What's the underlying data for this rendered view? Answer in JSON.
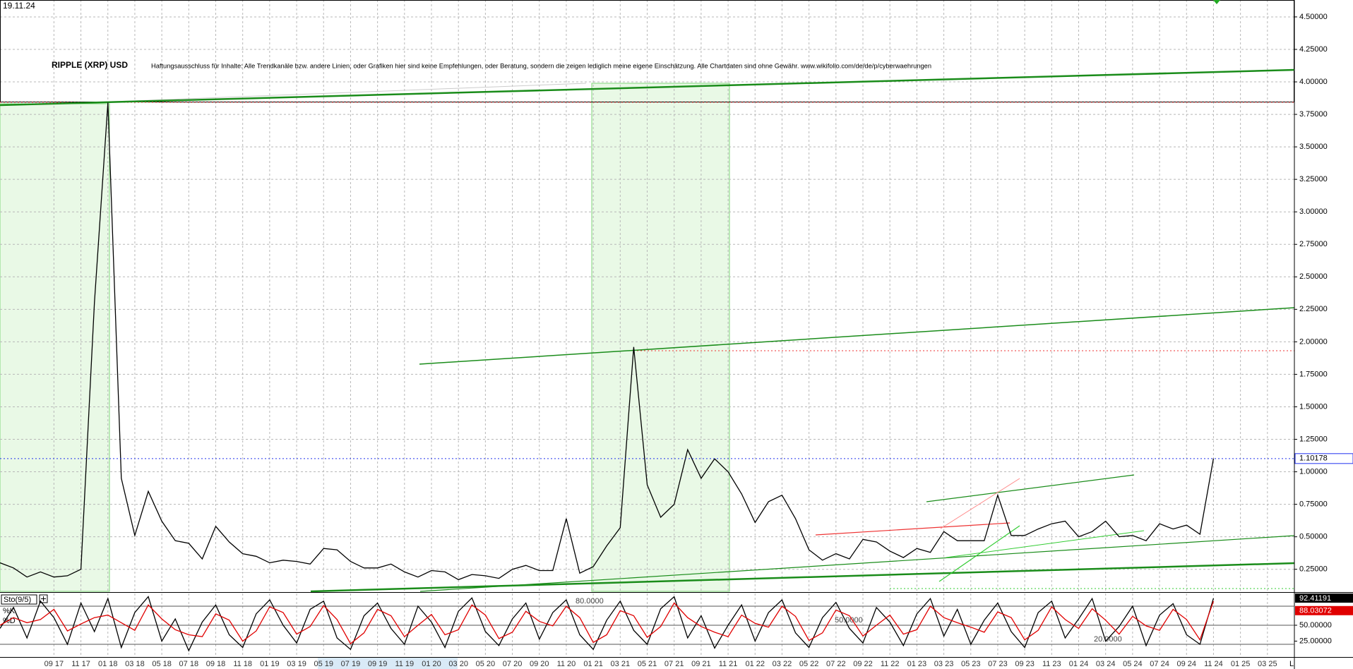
{
  "chart_data": [
    {
      "type": "line",
      "title": "RIPPLE (XRP) USD",
      "subtitle": "Haftungsausschluss für Inhalte: Alle Trendkanäle bzw. andere Linien, oder Grafiken hier sind keine Empfehlungen, oder Beratung, sondern die zeigen lediglich meine eigene Einschätzung. Alle Chartdaten sind ohne Gewähr.  www.wikifolio.com/de/de/p/cyberwaehrungen",
      "date": "19.11.24",
      "corner_label": "L",
      "x": [
        "2017-05",
        "2017-06",
        "2017-07",
        "2017-08",
        "2017-09",
        "2017-10",
        "2017-11",
        "2017-12",
        "2018-01",
        "2018-02",
        "2018-03",
        "2018-04",
        "2018-05",
        "2018-06",
        "2018-07",
        "2018-08",
        "2018-09",
        "2018-10",
        "2018-11",
        "2018-12",
        "2019-01",
        "2019-02",
        "2019-03",
        "2019-04",
        "2019-05",
        "2019-06",
        "2019-07",
        "2019-08",
        "2019-09",
        "2019-10",
        "2019-11",
        "2019-12",
        "2020-01",
        "2020-02",
        "2020-03",
        "2020-04",
        "2020-05",
        "2020-06",
        "2020-07",
        "2020-08",
        "2020-09",
        "2020-10",
        "2020-11",
        "2020-12",
        "2021-01",
        "2021-02",
        "2021-03",
        "2021-04",
        "2021-05",
        "2021-06",
        "2021-07",
        "2021-08",
        "2021-09",
        "2021-10",
        "2021-11",
        "2021-12",
        "2022-01",
        "2022-02",
        "2022-03",
        "2022-04",
        "2022-05",
        "2022-06",
        "2022-07",
        "2022-08",
        "2022-09",
        "2022-10",
        "2022-11",
        "2022-12",
        "2023-01",
        "2023-02",
        "2023-03",
        "2023-04",
        "2023-05",
        "2023-06",
        "2023-07",
        "2023-08",
        "2023-09",
        "2023-10",
        "2023-11",
        "2023-12",
        "2024-01",
        "2024-02",
        "2024-03",
        "2024-04",
        "2024-05",
        "2024-06",
        "2024-07",
        "2024-08",
        "2024-09",
        "2024-10",
        "2024-11"
      ],
      "series": [
        {
          "color": "#000000",
          "values": [
            0.3,
            0.26,
            0.19,
            0.23,
            0.19,
            0.2,
            0.25,
            2.3,
            3.84,
            0.95,
            0.51,
            0.85,
            0.62,
            0.47,
            0.45,
            0.33,
            0.58,
            0.46,
            0.37,
            0.35,
            0.3,
            0.32,
            0.31,
            0.29,
            0.41,
            0.4,
            0.31,
            0.26,
            0.26,
            0.29,
            0.23,
            0.19,
            0.24,
            0.23,
            0.17,
            0.21,
            0.2,
            0.18,
            0.25,
            0.28,
            0.24,
            0.24,
            0.64,
            0.22,
            0.27,
            0.43,
            0.57,
            1.96,
            0.9,
            0.65,
            0.75,
            1.17,
            0.95,
            1.1,
            1.0,
            0.83,
            0.61,
            0.77,
            0.82,
            0.64,
            0.4,
            0.32,
            0.37,
            0.33,
            0.48,
            0.46,
            0.39,
            0.34,
            0.41,
            0.38,
            0.54,
            0.47,
            0.47,
            0.47,
            0.82,
            0.51,
            0.51,
            0.56,
            0.6,
            0.62,
            0.5,
            0.54,
            0.62,
            0.5,
            0.51,
            0.47,
            0.6,
            0.56,
            0.59,
            0.52,
            1.10178
          ]
        }
      ],
      "xlim": [
        "2017-05",
        "2025-05"
      ],
      "xticks": [
        {
          "value": "2017-09",
          "label": "09 17"
        },
        {
          "value": "2017-11",
          "label": "11 17"
        },
        {
          "value": "2018-01",
          "label": "01 18"
        },
        {
          "value": "2018-03",
          "label": "03 18"
        },
        {
          "value": "2018-05",
          "label": "05 18"
        },
        {
          "value": "2018-07",
          "label": "07 18"
        },
        {
          "value": "2018-09",
          "label": "09 18"
        },
        {
          "value": "2018-11",
          "label": "11 18"
        },
        {
          "value": "2019-01",
          "label": "01 19"
        },
        {
          "value": "2019-03",
          "label": "03 19"
        },
        {
          "value": "2019-05",
          "label": "05 19"
        },
        {
          "value": "2019-07",
          "label": "07 19"
        },
        {
          "value": "2019-09",
          "label": "09 19"
        },
        {
          "value": "2019-11",
          "label": "11 19"
        },
        {
          "value": "2020-01",
          "label": "01 20"
        },
        {
          "value": "2020-03",
          "label": "03 20"
        },
        {
          "value": "2020-05",
          "label": "05 20"
        },
        {
          "value": "2020-07",
          "label": "07 20"
        },
        {
          "value": "2020-09",
          "label": "09 20"
        },
        {
          "value": "2020-11",
          "label": "11 20"
        },
        {
          "value": "2021-01",
          "label": "01 21"
        },
        {
          "value": "2021-03",
          "label": "03 21"
        },
        {
          "value": "2021-05",
          "label": "05 21"
        },
        {
          "value": "2021-07",
          "label": "07 21"
        },
        {
          "value": "2021-09",
          "label": "09 21"
        },
        {
          "value": "2021-11",
          "label": "11 21"
        },
        {
          "value": "2022-01",
          "label": "01 22"
        },
        {
          "value": "2022-03",
          "label": "03 22"
        },
        {
          "value": "2022-05",
          "label": "05 22"
        },
        {
          "value": "2022-07",
          "label": "07 22"
        },
        {
          "value": "2022-09",
          "label": "09 22"
        },
        {
          "value": "2022-11",
          "label": "11 22"
        },
        {
          "value": "2023-01",
          "label": "01 23"
        },
        {
          "value": "2023-03",
          "label": "03 23"
        },
        {
          "value": "2023-05",
          "label": "05 23"
        },
        {
          "value": "2023-07",
          "label": "07 23"
        },
        {
          "value": "2023-09",
          "label": "09 23"
        },
        {
          "value": "2023-11",
          "label": "11 23"
        },
        {
          "value": "2024-01",
          "label": "01 24"
        },
        {
          "value": "2024-03",
          "label": "03 24"
        },
        {
          "value": "2024-05",
          "label": "05 24"
        },
        {
          "value": "2024-07",
          "label": "07 24"
        },
        {
          "value": "2024-09",
          "label": "09 24"
        },
        {
          "value": "2024-11",
          "label": "11 24"
        },
        {
          "value": "2025-01",
          "label": "01 25"
        },
        {
          "value": "2025-03",
          "label": "03 25"
        }
      ],
      "ylim": [
        0.08,
        4.63
      ],
      "yticks": [
        {
          "value": 0.25,
          "label": "0.25000"
        },
        {
          "value": 0.5,
          "label": "0.50000"
        },
        {
          "value": 0.75,
          "label": "0.75000"
        },
        {
          "value": 1,
          "label": "1.00000"
        },
        {
          "value": 1.25,
          "label": "1.25000"
        },
        {
          "value": 1.5,
          "label": "1.50000"
        },
        {
          "value": 1.75,
          "label": "1.75000"
        },
        {
          "value": 2,
          "label": "2.00000"
        },
        {
          "value": 2.25,
          "label": "2.25000"
        },
        {
          "value": 2.5,
          "label": "2.50000"
        },
        {
          "value": 2.75,
          "label": "2.75000"
        },
        {
          "value": 3,
          "label": "3.00000"
        },
        {
          "value": 3.25,
          "label": "3.25000"
        },
        {
          "value": 3.5,
          "label": "3.50000"
        },
        {
          "value": 3.75,
          "label": "3.75000"
        },
        {
          "value": 4,
          "label": "4.00000"
        },
        {
          "value": 4.25,
          "label": "4.25000"
        },
        {
          "value": 4.5,
          "label": "4.50000"
        }
      ],
      "grid": true
    },
    {
      "type": "line",
      "title": "Sto(9/5)",
      "series": [
        {
          "name": "%K",
          "color": "#000000",
          "values": [
            45,
            78,
            30,
            88,
            62,
            20,
            85,
            40,
            92,
            15,
            70,
            95,
            25,
            60,
            10,
            55,
            82,
            35,
            15,
            68,
            90,
            50,
            22,
            75,
            88,
            30,
            12,
            65,
            85,
            45,
            20,
            80,
            55,
            15,
            72,
            93,
            40,
            18,
            60,
            85,
            28,
            70,
            90,
            35,
            12,
            58,
            88,
            42,
            20,
            76,
            95,
            30,
            65,
            14,
            50,
            82,
            25,
            70,
            90,
            38,
            15,
            62,
            86,
            45,
            22,
            78,
            55,
            18,
            68,
            92,
            33,
            75,
            20,
            58,
            85,
            40,
            15,
            70,
            88,
            30,
            60,
            92,
            25,
            48,
            80,
            18,
            66,
            84,
            35,
            20,
            92.41191
          ]
        },
        {
          "name": "%D",
          "color": "#e00000",
          "values": [
            50,
            62,
            54,
            59,
            75,
            41,
            52,
            62,
            66,
            54,
            42,
            82,
            60,
            43,
            35,
            32,
            68,
            58,
            25,
            41,
            79,
            70,
            36,
            48,
            81,
            59,
            21,
            38,
            75,
            65,
            32,
            50,
            67,
            35,
            43,
            82,
            66,
            29,
            39,
            72,
            56,
            49,
            80,
            62,
            23,
            35,
            73,
            65,
            31,
            48,
            85,
            62,
            48,
            39,
            32,
            66,
            53,
            47,
            80,
            64,
            26,
            38,
            74,
            65,
            33,
            50,
            66,
            36,
            43,
            80,
            62,
            54,
            47,
            39,
            71,
            62,
            27,
            42,
            79,
            59,
            45,
            76,
            58,
            36,
            64,
            49,
            42,
            75,
            59,
            27,
            88.03072
          ]
        }
      ],
      "ylim": [
        0,
        100
      ],
      "yticks": [
        {
          "value": 25,
          "label": "25.00000"
        },
        {
          "value": 50,
          "label": "50.00000"
        }
      ],
      "levels": [
        {
          "value": 80,
          "label": "80.0000"
        },
        {
          "value": 50,
          "label": "50.0000"
        },
        {
          "value": 20,
          "label": "20.0000"
        }
      ]
    }
  ]
}
